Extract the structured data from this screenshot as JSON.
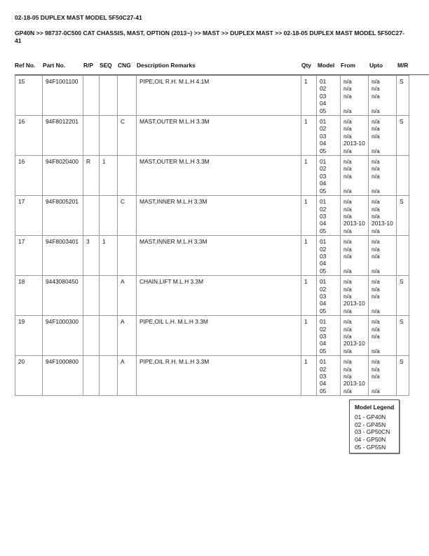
{
  "title": "02-18-05 DUPLEX MAST MODEL 5F50C27-41",
  "breadcrumb": "GP40N >> 98737-0C500 CAT CHASSIS, MAST, OPTION (2013~) >> MAST >> DUPLEX MAST >> 02-18-05 DUPLEX MAST MODEL 5F50C27-41",
  "columns": [
    "Ref No.",
    "Part No.",
    "R/P",
    "SEQ",
    "CNG",
    "Description Remarks",
    "Qty",
    "Model",
    "From",
    "Upto",
    "M/R"
  ],
  "rows": [
    {
      "ref": "15",
      "part": "94F1001100",
      "rp": "",
      "seq": "",
      "cng": "",
      "desc": "PIPE,OIL R.H. M.L.H 4.1M",
      "qty": "1",
      "model": "01\n02\n03\n04\n05",
      "from": "n/a\nn/a\nn/a\n\nn/a",
      "upto": "n/a\nn/a\nn/a\n\nn/a",
      "mr": "S"
    },
    {
      "ref": "16",
      "part": "94F8012201",
      "rp": "",
      "seq": "",
      "cng": "C",
      "desc": "MAST,OUTER M.L.H 3.3M",
      "qty": "1",
      "model": "01\n02\n03\n04\n05",
      "from": "n/a\nn/a\nn/a\n2013-10\nn/a",
      "upto": "n/a\nn/a\nn/a\n\nn/a",
      "mr": "S"
    },
    {
      "ref": "16",
      "part": "94F8020400",
      "rp": "R",
      "seq": "1",
      "cng": "",
      "desc": "MAST,OUTER M.L.H 3.3M",
      "qty": "1",
      "model": "01\n02\n03\n04\n05",
      "from": "n/a\nn/a\nn/a\n\nn/a",
      "upto": "n/a\nn/a\nn/a\n\nn/a",
      "mr": ""
    },
    {
      "ref": "17",
      "part": "94F8005201",
      "rp": "",
      "seq": "",
      "cng": "C",
      "desc": "MAST,INNER M.L.H 3.3M",
      "qty": "1",
      "model": "01\n02\n03\n04\n05",
      "from": "n/a\nn/a\nn/a\n2013-10\nn/a",
      "upto": "n/a\nn/a\nn/a\n2013-10\nn/a",
      "mr": "S"
    },
    {
      "ref": "17",
      "part": "94F8003401",
      "rp": "3",
      "seq": "1",
      "cng": "",
      "desc": "MAST,INNER M.L.H 3.3M",
      "qty": "1",
      "model": "01\n02\n03\n04\n05",
      "from": "n/a\nn/a\nn/a\n\nn/a",
      "upto": "n/a\nn/a\nn/a\n\nn/a",
      "mr": ""
    },
    {
      "ref": "18",
      "part": "9443080450",
      "rp": "",
      "seq": "",
      "cng": "A",
      "desc": "CHAIN,LIFT M.L.H 3.3M",
      "qty": "1",
      "model": "01\n02\n03\n04\n05",
      "from": "n/a\nn/a\nn/a\n2013-10\nn/a",
      "upto": "n/a\nn/a\nn/a\n\nn/a",
      "mr": "S"
    },
    {
      "ref": "19",
      "part": "94F1000300",
      "rp": "",
      "seq": "",
      "cng": "A",
      "desc": "PIPE,OIL L.H. M.L.H 3.3M",
      "qty": "1",
      "model": "01\n02\n03\n04\n05",
      "from": "n/a\nn/a\nn/a\n2013-10\nn/a",
      "upto": "n/a\nn/a\nn/a\n\nn/a",
      "mr": "S"
    },
    {
      "ref": "20",
      "part": "94F1000800",
      "rp": "",
      "seq": "",
      "cng": "A",
      "desc": "PIPE,OIL R.H. M.L.H 3.3M",
      "qty": "1",
      "model": "01\n02\n03\n04\n05",
      "from": "n/a\nn/a\nn/a\n2013-10\nn/a",
      "upto": "n/a\nn/a\nn/a\n\nn/a",
      "mr": "S"
    }
  ],
  "legend": {
    "title": "Model Legend",
    "items": [
      "01 - GP40N",
      "02 - GP45N",
      "03 - GP50CN",
      "04 - GP50N",
      "05 - GP55N"
    ]
  }
}
